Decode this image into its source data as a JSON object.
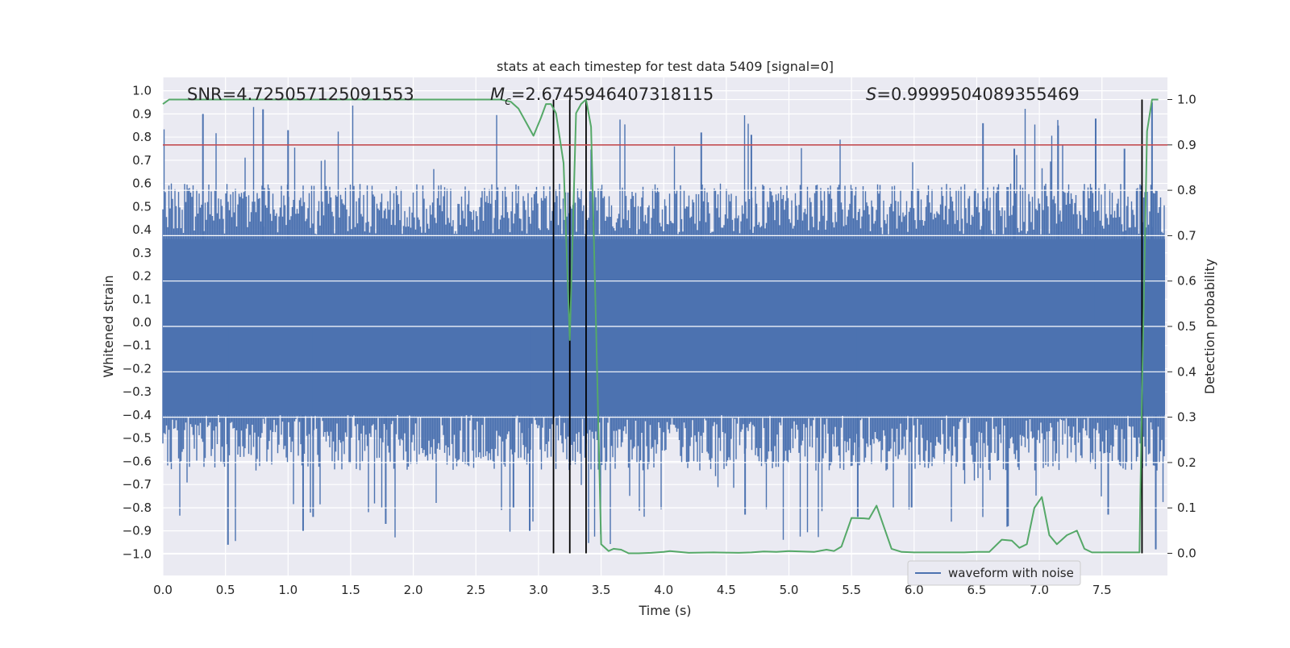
{
  "chart_data": {
    "type": "line",
    "title": "stats at each timestep for test data 5409 [signal=0]",
    "xlabel": "Time (s)",
    "ylabel": "Whitened strain",
    "y2label": "Detection probability",
    "xlim": [
      0.0,
      8.0
    ],
    "ylim": [
      -1.1,
      1.05
    ],
    "y2lim": [
      -0.05,
      1.05
    ],
    "x_ticks": [
      "0.0",
      "0.5",
      "1.0",
      "1.5",
      "2.0",
      "2.5",
      "3.0",
      "3.5",
      "4.0",
      "4.5",
      "5.0",
      "5.5",
      "6.0",
      "6.5",
      "7.0",
      "7.5"
    ],
    "y_ticks": [
      "1.0",
      "0.9",
      "0.8",
      "0.7",
      "0.6",
      "0.5",
      "0.4",
      "0.3",
      "0.2",
      "0.1",
      "0.0",
      "−0.1",
      "−0.2",
      "−0.3",
      "−0.4",
      "−0.5",
      "−0.6",
      "−0.7",
      "−0.8",
      "−0.9",
      "−1.0"
    ],
    "y2_ticks": [
      "1.0",
      "0.9",
      "0.8",
      "0.7",
      "0.6",
      "0.5",
      "0.4",
      "0.3",
      "0.2",
      "0.1",
      "0.0"
    ],
    "annotations": {
      "snr": "SNR=4.725057125091553",
      "mc_symbol": "M",
      "mc_sub": "c",
      "mc_value": "=2.6745946407318115",
      "s_symbol": "S",
      "s_value": "=0.9999504089355469"
    },
    "threshold": {
      "value": 0.9,
      "color": "#c44e52"
    },
    "vertical_markers": [
      3.12,
      3.25,
      3.38,
      7.82
    ],
    "series": [
      {
        "name": "waveform with noise",
        "color": "#4c72b0",
        "description": "dense whitened strain, mostly within ±0.4 with spikes up to about 0.95 and down to about −0.97"
      },
      {
        "name": "detection probability",
        "color": "#55a868",
        "x": [
          0.0,
          0.05,
          0.5,
          1.0,
          1.5,
          2.0,
          2.5,
          2.7,
          2.78,
          2.84,
          2.9,
          2.96,
          3.02,
          3.06,
          3.1,
          3.14,
          3.2,
          3.25,
          3.3,
          3.34,
          3.38,
          3.42,
          3.46,
          3.5,
          3.56,
          3.6,
          3.66,
          3.72,
          3.8,
          3.9,
          4.0,
          4.05,
          4.2,
          4.4,
          4.6,
          4.7,
          4.8,
          4.9,
          5.0,
          5.1,
          5.2,
          5.3,
          5.36,
          5.42,
          5.5,
          5.6,
          5.64,
          5.7,
          5.82,
          5.9,
          6.0,
          6.2,
          6.4,
          6.5,
          6.6,
          6.7,
          6.78,
          6.84,
          6.9,
          6.96,
          7.02,
          7.08,
          7.14,
          7.22,
          7.3,
          7.36,
          7.42,
          7.5,
          7.6,
          7.7,
          7.8,
          7.82,
          7.86,
          7.9,
          7.95
        ],
        "values": [
          0.99,
          1.0,
          1.0,
          1.0,
          1.0,
          1.0,
          1.0,
          1.0,
          0.995,
          0.98,
          0.95,
          0.92,
          0.96,
          0.99,
          0.99,
          0.97,
          0.86,
          0.47,
          0.97,
          0.99,
          1.0,
          0.94,
          0.5,
          0.02,
          0.005,
          0.01,
          0.008,
          0.0,
          0.0,
          0.001,
          0.003,
          0.005,
          0.001,
          0.002,
          0.001,
          0.002,
          0.004,
          0.003,
          0.005,
          0.004,
          0.003,
          0.008,
          0.005,
          0.015,
          0.078,
          0.077,
          0.076,
          0.105,
          0.01,
          0.003,
          0.002,
          0.002,
          0.002,
          0.003,
          0.003,
          0.03,
          0.028,
          0.012,
          0.02,
          0.1,
          0.124,
          0.04,
          0.02,
          0.04,
          0.05,
          0.01,
          0.002,
          0.002,
          0.002,
          0.002,
          0.002,
          0.35,
          0.93,
          1.0,
          1.0
        ]
      }
    ],
    "legend": {
      "label": "waveform with noise",
      "position": "lower-right"
    }
  }
}
